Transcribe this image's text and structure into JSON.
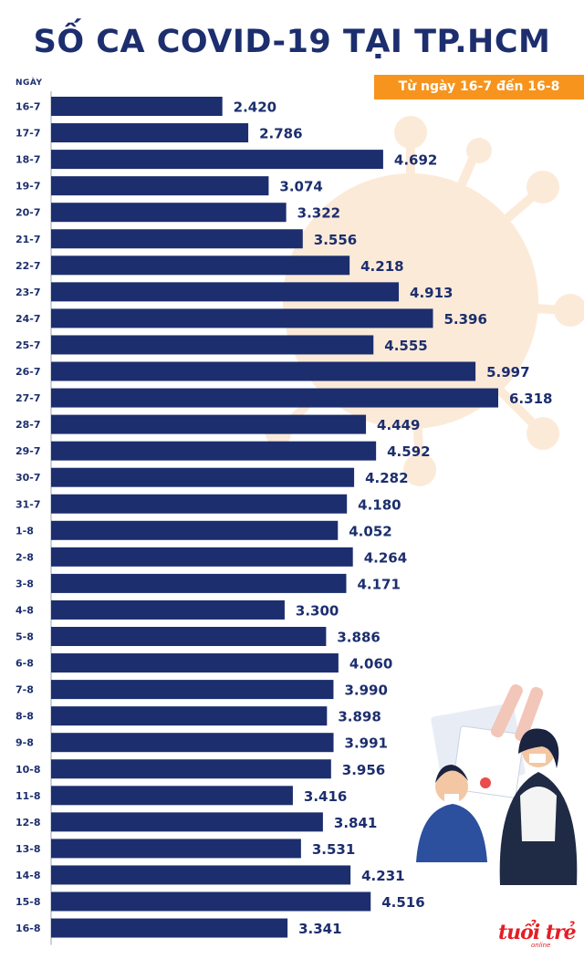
{
  "chart_data": {
    "type": "bar",
    "orientation": "horizontal",
    "title": "SỐ CA COVID-19 TẠI TP.HCM",
    "subtitle": "Từ ngày 16-7 đến 16-8",
    "ylabel": "NGÀY",
    "xlabel": "",
    "xlim": [
      0,
      6318
    ],
    "grid": false,
    "bar_color": "#1c2e6e",
    "categories": [
      "16-7",
      "17-7",
      "18-7",
      "19-7",
      "20-7",
      "21-7",
      "22-7",
      "23-7",
      "24-7",
      "25-7",
      "26-7",
      "27-7",
      "28-7",
      "29-7",
      "30-7",
      "31-7",
      "1-8",
      "2-8",
      "3-8",
      "4-8",
      "5-8",
      "6-8",
      "7-8",
      "8-8",
      "9-8",
      "10-8",
      "11-8",
      "12-8",
      "13-8",
      "14-8",
      "15-8",
      "16-8"
    ],
    "values": [
      2420,
      2786,
      4692,
      3074,
      3322,
      3556,
      4218,
      4913,
      5396,
      4555,
      5997,
      6318,
      4449,
      4592,
      4282,
      4180,
      4052,
      4264,
      4171,
      3300,
      3886,
      4060,
      3990,
      3898,
      3991,
      3956,
      3416,
      3841,
      3531,
      4231,
      4516,
      3341
    ],
    "value_labels": [
      "2.420",
      "2.786",
      "4.692",
      "3.074",
      "3.322",
      "3.556",
      "4.218",
      "4.913",
      "5.396",
      "4.555",
      "5.997",
      "6.318",
      "4.449",
      "4.592",
      "4.282",
      "4.180",
      "4.052",
      "4.264",
      "4.171",
      "3.300",
      "3.886",
      "4.060",
      "3.990",
      "3.898",
      "3.991",
      "3.956",
      "3.416",
      "3.841",
      "3.531",
      "4.231",
      "4.516",
      "3.341"
    ]
  },
  "colors": {
    "navy": "#1c2e6e",
    "orange": "#f7941d",
    "virus": "#fbe3cc",
    "logo_red": "#e31e24"
  },
  "logo": {
    "text": "tuổi trẻ",
    "sub": "online"
  }
}
